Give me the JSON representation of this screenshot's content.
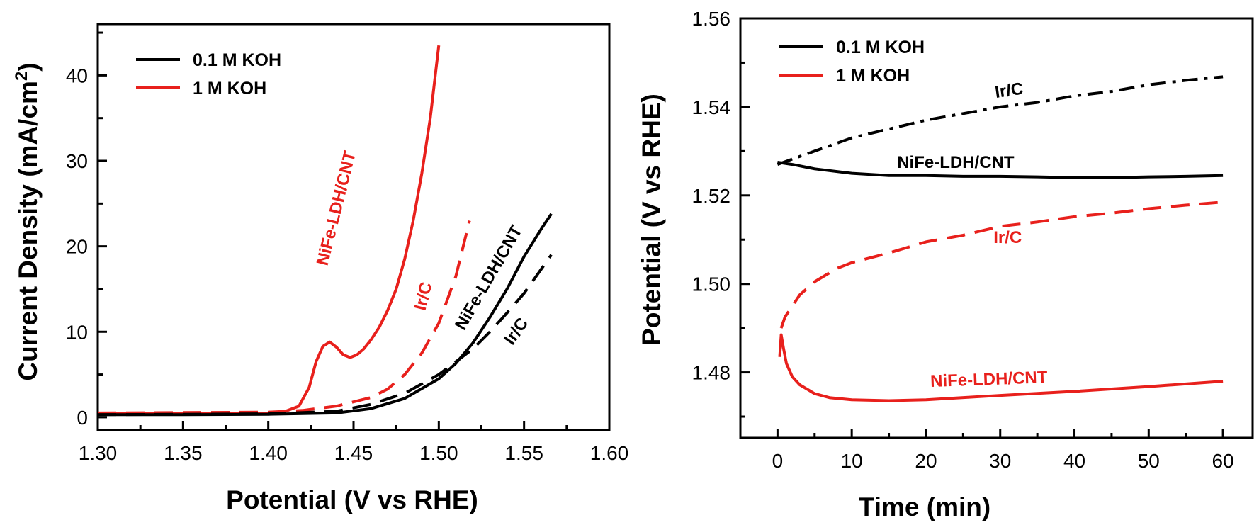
{
  "chart_data": [
    {
      "type": "line",
      "title": "",
      "xlabel": "Potential (V vs RHE)",
      "ylabel": "Current Density (mA/cm",
      "ylabel_sup": "2",
      "ylabel_close": ")",
      "xlim": [
        1.3,
        1.6
      ],
      "ylim": [
        -1.5,
        46
      ],
      "xticks": [
        "1.30",
        "1.35",
        "1.40",
        "1.45",
        "1.50",
        "1.55",
        "1.60"
      ],
      "yticks": [
        "0",
        "10",
        "20",
        "30",
        "40"
      ],
      "legend_position": "top-left",
      "legend": [
        {
          "label": "0.1 M KOH",
          "color": "#000000"
        },
        {
          "label": "1 M KOH",
          "color": "#e8201c"
        }
      ],
      "series": [
        {
          "color": "#e8201c",
          "dash": "solid",
          "label": "NiFe-LDH/CNT",
          "x": [
            1.3,
            1.35,
            1.4,
            1.41,
            1.418,
            1.424,
            1.428,
            1.432,
            1.436,
            1.44,
            1.444,
            1.448,
            1.452,
            1.456,
            1.46,
            1.465,
            1.47,
            1.475,
            1.48,
            1.485,
            1.49,
            1.495,
            1.5
          ],
          "y": [
            0.4,
            0.45,
            0.5,
            0.7,
            1.3,
            3.5,
            6.5,
            8.3,
            8.8,
            8.2,
            7.3,
            7.0,
            7.3,
            8.0,
            9.0,
            10.5,
            12.5,
            15.0,
            18.5,
            23.0,
            28.5,
            35.0,
            43.5
          ]
        },
        {
          "color": "#e8201c",
          "dash": "dash",
          "label": "Ir/C",
          "x": [
            1.3,
            1.35,
            1.4,
            1.42,
            1.44,
            1.46,
            1.47,
            1.48,
            1.49,
            1.5,
            1.51,
            1.518
          ],
          "y": [
            0.5,
            0.55,
            0.6,
            0.8,
            1.3,
            2.3,
            3.3,
            5.0,
            7.5,
            11.0,
            16.5,
            23.0
          ]
        },
        {
          "color": "#000000",
          "dash": "solid",
          "label": "NiFe-LDH/CNT",
          "x": [
            1.3,
            1.35,
            1.4,
            1.44,
            1.46,
            1.48,
            1.5,
            1.51,
            1.52,
            1.53,
            1.54,
            1.55,
            1.56,
            1.566
          ],
          "y": [
            0.3,
            0.3,
            0.35,
            0.5,
            1.0,
            2.2,
            4.5,
            6.3,
            8.7,
            11.7,
            15.0,
            18.8,
            22.0,
            23.8
          ]
        },
        {
          "color": "#000000",
          "dash": "dash",
          "label": "Ir/C",
          "x": [
            1.3,
            1.35,
            1.4,
            1.44,
            1.46,
            1.48,
            1.5,
            1.51,
            1.52,
            1.53,
            1.54,
            1.55,
            1.56,
            1.566
          ],
          "y": [
            0.3,
            0.35,
            0.4,
            0.7,
            1.5,
            2.8,
            5.0,
            6.5,
            8.0,
            10.0,
            12.2,
            14.5,
            17.3,
            19.0
          ]
        }
      ],
      "annotations": [
        {
          "text": "NiFe-LDH/CNT",
          "color": "#e8201c",
          "x": 1.443,
          "y": 24.3,
          "rotate": -76
        },
        {
          "text": "Ir/C",
          "color": "#e8201c",
          "x": 1.494,
          "y": 14.0,
          "rotate": -76
        },
        {
          "text": "NiFe-LDH/CNT",
          "color": "#000000",
          "x": 1.532,
          "y": 16.0,
          "rotate": -60
        },
        {
          "text": "Ir/C",
          "color": "#000000",
          "x": 1.548,
          "y": 9.7,
          "rotate": -55
        }
      ]
    },
    {
      "type": "line",
      "title": "",
      "xlabel": "Time (min)",
      "ylabel": "Potential (V vs RHE)",
      "xlim": [
        -5,
        64
      ],
      "ylim": [
        1.4652,
        1.56
      ],
      "xticks": [
        "0",
        "10",
        "20",
        "30",
        "40",
        "50",
        "60"
      ],
      "yticks": [
        "1.48",
        "1.50",
        "1.52",
        "1.54",
        "1.56"
      ],
      "legend_position": "top-left",
      "legend": [
        {
          "label": "0.1 M KOH",
          "color": "#000000"
        },
        {
          "label": "1 M KOH",
          "color": "#e8201c"
        }
      ],
      "series": [
        {
          "color": "#000000",
          "dash": "dashdot",
          "label": "Ir/C",
          "x": [
            0,
            5,
            10,
            15,
            20,
            25,
            30,
            35,
            40,
            45,
            50,
            55,
            60
          ],
          "y": [
            1.527,
            1.53,
            1.533,
            1.535,
            1.537,
            1.5385,
            1.54,
            1.541,
            1.5425,
            1.5435,
            1.545,
            1.546,
            1.5468
          ]
        },
        {
          "color": "#000000",
          "dash": "solid",
          "label": "NiFe-LDH/CNT",
          "x": [
            0,
            2,
            5,
            10,
            15,
            20,
            25,
            30,
            35,
            40,
            45,
            50,
            55,
            60
          ],
          "y": [
            1.5275,
            1.527,
            1.526,
            1.525,
            1.5245,
            1.5245,
            1.5243,
            1.5243,
            1.5242,
            1.524,
            1.524,
            1.5242,
            1.5243,
            1.5245
          ]
        },
        {
          "color": "#e8201c",
          "dash": "dash",
          "label": "Ir/C",
          "x": [
            0.5,
            1,
            2,
            3,
            5,
            8,
            10,
            15,
            20,
            25,
            30,
            35,
            40,
            45,
            50,
            55,
            60
          ],
          "y": [
            1.49,
            1.4925,
            1.495,
            1.4975,
            1.5005,
            1.5035,
            1.5048,
            1.507,
            1.5095,
            1.511,
            1.513,
            1.514,
            1.5152,
            1.516,
            1.517,
            1.5178,
            1.5185
          ]
        },
        {
          "color": "#e8201c",
          "dash": "solid",
          "label": "NiFe-LDH/CNT",
          "x": [
            0.3,
            0.5,
            0.8,
            1.2,
            2,
            3,
            4,
            5,
            7,
            10,
            15,
            20,
            30,
            40,
            50,
            60
          ],
          "y": [
            1.4835,
            1.4885,
            1.4855,
            1.482,
            1.479,
            1.4772,
            1.4762,
            1.4752,
            1.4743,
            1.4738,
            1.4736,
            1.4738,
            1.4748,
            1.4757,
            1.4768,
            1.478
          ]
        }
      ],
      "annotations": [
        {
          "text": "Ir/C",
          "color": "#000000",
          "x": 31.3,
          "y": 1.5425,
          "rotate": -8
        },
        {
          "text": "NiFe-LDH/CNT",
          "color": "#000000",
          "x": 24.0,
          "y": 1.5262,
          "rotate": 0
        },
        {
          "text": "Ir/C",
          "color": "#e8201c",
          "x": 31.0,
          "y": 1.5092,
          "rotate": 0
        },
        {
          "text": "NiFe-LDH/CNT",
          "color": "#e8201c",
          "x": 28.5,
          "y": 1.4772,
          "rotate": -2
        }
      ]
    }
  ]
}
